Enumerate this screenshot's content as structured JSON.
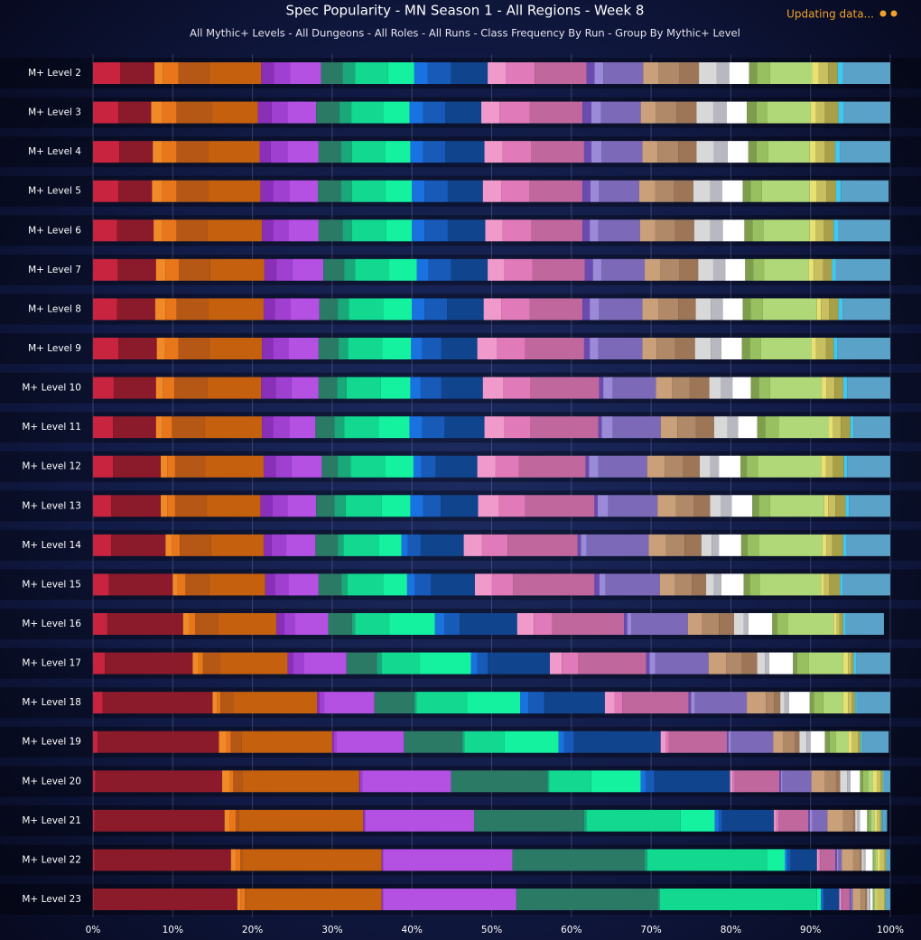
{
  "status": "Updating data...",
  "chart_data": {
    "type": "bar",
    "orientation": "horizontal",
    "stacked": true,
    "title": "Spec Popularity - MN Season 1 - All Regions - Week 8",
    "subtitle": "All Mythic+ Levels - All Dungeons - All Roles - All Runs - Class Frequency By Run - Group By Mythic+ Level",
    "categories": [
      "M+ Level 2",
      "M+ Level 3",
      "M+ Level 4",
      "M+ Level 5",
      "M+ Level 6",
      "M+ Level 7",
      "M+ Level 8",
      "M+ Level 9",
      "M+ Level 10",
      "M+ Level 11",
      "M+ Level 12",
      "M+ Level 13",
      "M+ Level 14",
      "M+ Level 15",
      "M+ Level 16",
      "M+ Level 17",
      "M+ Level 18",
      "M+ Level 19",
      "M+ Level 20",
      "M+ Level 21",
      "M+ Level 22",
      "M+ Level 23"
    ],
    "xlim": [
      0,
      100
    ],
    "xticks": [
      {
        "value": 0,
        "label": "0%"
      },
      {
        "value": 10,
        "label": "10%"
      },
      {
        "value": 20,
        "label": "20%"
      },
      {
        "value": 30,
        "label": "30%"
      },
      {
        "value": 40,
        "label": "40%"
      },
      {
        "value": 50,
        "label": "50%"
      },
      {
        "value": 60,
        "label": "60%"
      },
      {
        "value": 70,
        "label": "70%"
      },
      {
        "value": 80,
        "label": "80%"
      },
      {
        "value": 90,
        "label": "90%"
      },
      {
        "value": 100,
        "label": "100%"
      }
    ],
    "grid": true,
    "series": [
      {
        "color": "#c8243f",
        "values": [
          3.4,
          3.2,
          3.3,
          3.2,
          3.0,
          3.1,
          3.0,
          3.2,
          2.6,
          2.5,
          2.5,
          2.3,
          2.3,
          2.0,
          1.8,
          1.5,
          1.2,
          0.6,
          0.3,
          0.2,
          0.2,
          0.1
        ]
      },
      {
        "color": "#8b1a2a",
        "values": [
          4.3,
          4.1,
          4.2,
          4.2,
          4.6,
          4.8,
          4.8,
          4.8,
          5.3,
          5.4,
          6.0,
          6.2,
          6.8,
          8.0,
          9.5,
          11.0,
          13.8,
          15.2,
          15.9,
          16.3,
          17.1,
          18.0
        ]
      },
      {
        "color": "#f08a28",
        "values": [
          1.1,
          1.4,
          1.2,
          1.3,
          1.1,
          1.2,
          1.3,
          1.0,
          0.9,
          0.8,
          0.8,
          0.8,
          0.8,
          0.6,
          0.8,
          0.7,
          0.6,
          0.9,
          0.9,
          0.6,
          0.6,
          0.4
        ]
      },
      {
        "color": "#e8761a",
        "values": [
          1.9,
          1.8,
          1.8,
          1.8,
          1.8,
          1.7,
          1.4,
          1.7,
          1.4,
          1.2,
          1.0,
          1.0,
          1.0,
          1.0,
          0.7,
          0.6,
          0.4,
          0.6,
          0.5,
          0.8,
          0.6,
          0.6
        ]
      },
      {
        "color": "#b55816",
        "values": [
          3.9,
          4.4,
          3.9,
          4.0,
          3.8,
          3.9,
          3.9,
          3.9,
          4.1,
          4.1,
          3.8,
          3.9,
          3.9,
          3.0,
          2.9,
          2.1,
          1.6,
          1.3,
          1.1,
          0.4,
          0.2,
          0.1
        ]
      },
      {
        "color": "#c4600e",
        "values": [
          6.5,
          5.8,
          6.5,
          6.5,
          6.9,
          6.8,
          7.0,
          6.6,
          6.8,
          7.2,
          7.3,
          6.8,
          6.6,
          7.0,
          7.3,
          8.5,
          10.5,
          11.4,
          14.7,
          15.6,
          17.5,
          17.0
        ]
      },
      {
        "color": "#8a2fb8",
        "values": [
          1.6,
          1.7,
          1.4,
          1.6,
          1.4,
          1.5,
          1.4,
          1.4,
          1.8,
          1.4,
          1.5,
          1.5,
          1.0,
          1.2,
          1.0,
          0.7,
          0.3,
          0.2,
          0.1,
          0.1,
          0.1,
          0.1
        ]
      },
      {
        "color": "#a040d0",
        "values": [
          2.0,
          2.0,
          2.1,
          2.0,
          1.9,
          2.0,
          2.0,
          1.9,
          2.0,
          2.0,
          2.0,
          1.9,
          1.8,
          1.7,
          1.3,
          1.4,
          0.6,
          0.3,
          0.3,
          0.2,
          0.1,
          0.1
        ]
      },
      {
        "color": "#b450e2",
        "values": [
          3.9,
          3.6,
          3.9,
          3.6,
          3.8,
          3.9,
          3.6,
          3.8,
          3.4,
          3.3,
          3.8,
          3.6,
          3.7,
          3.8,
          4.2,
          5.3,
          6.3,
          8.5,
          11.1,
          13.6,
          16.2,
          16.7
        ]
      },
      {
        "color": "#2a7a66",
        "values": [
          2.7,
          2.9,
          2.8,
          2.9,
          3.0,
          2.6,
          2.3,
          2.5,
          2.3,
          2.4,
          2.0,
          2.3,
          2.8,
          2.9,
          3.0,
          3.8,
          5.0,
          7.3,
          12.1,
          13.8,
          16.6,
          17.8
        ]
      },
      {
        "color": "#1aa87a",
        "values": [
          1.6,
          1.5,
          1.4,
          1.4,
          1.2,
          1.4,
          1.4,
          1.2,
          1.2,
          1.2,
          1.6,
          1.4,
          0.7,
          0.7,
          0.4,
          0.6,
          0.3,
          0.3,
          0.2,
          0.3,
          0.3,
          0.2
        ]
      },
      {
        "color": "#12d890",
        "values": [
          4.1,
          4.0,
          4.1,
          4.2,
          4.3,
          4.2,
          4.3,
          4.3,
          4.3,
          4.3,
          4.3,
          4.5,
          4.5,
          4.5,
          4.3,
          4.8,
          6.3,
          5.0,
          5.3,
          11.8,
          15.1,
          19.7
        ]
      },
      {
        "color": "#14f2a0",
        "values": [
          3.3,
          3.3,
          3.2,
          3.3,
          3.2,
          3.5,
          3.6,
          3.6,
          3.7,
          3.9,
          3.6,
          3.6,
          2.8,
          3.0,
          5.7,
          6.4,
          6.7,
          6.8,
          6.2,
          4.3,
          2.2,
          0.5
        ]
      },
      {
        "color": "#1a72e0",
        "values": [
          1.7,
          1.7,
          1.6,
          1.6,
          1.6,
          1.5,
          1.6,
          1.4,
          1.3,
          1.6,
          1.0,
          1.6,
          0.8,
          1.0,
          1.2,
          0.8,
          1.0,
          0.7,
          0.6,
          0.5,
          0.3,
          0.2
        ]
      },
      {
        "color": "#175ab8",
        "values": [
          2.9,
          2.8,
          2.8,
          2.9,
          2.9,
          2.8,
          2.8,
          2.4,
          2.6,
          2.8,
          1.8,
          2.2,
          1.6,
          2.0,
          1.9,
          1.3,
          2.0,
          1.2,
          1.1,
          0.4,
          0.4,
          0.2
        ]
      },
      {
        "color": "#10448c",
        "values": [
          4.6,
          4.5,
          4.9,
          4.4,
          4.7,
          4.6,
          4.6,
          4.5,
          5.2,
          5.0,
          5.2,
          4.7,
          5.4,
          5.5,
          7.2,
          7.8,
          7.6,
          10.9,
          9.5,
          6.5,
          3.3,
          1.9
        ]
      },
      {
        "color": "#f09acb",
        "values": [
          2.3,
          2.3,
          2.3,
          2.3,
          2.2,
          2.1,
          2.2,
          2.5,
          2.6,
          2.5,
          2.3,
          2.6,
          2.3,
          2.1,
          2.1,
          1.5,
          1.2,
          0.6,
          0.3,
          0.3,
          0.2,
          0.2
        ]
      },
      {
        "color": "#e07ab8",
        "values": [
          3.6,
          3.8,
          3.6,
          3.5,
          3.6,
          3.5,
          3.6,
          3.5,
          3.4,
          3.3,
          2.9,
          3.3,
          3.2,
          2.7,
          2.3,
          2.1,
          1.0,
          0.4,
          0.3,
          0.3,
          0.2,
          0.1
        ]
      },
      {
        "color": "#c0689e",
        "values": [
          6.5,
          6.6,
          6.6,
          6.7,
          6.4,
          6.6,
          6.6,
          7.4,
          8.6,
          8.5,
          8.4,
          8.7,
          8.8,
          10.2,
          9.0,
          8.5,
          8.3,
          7.3,
          5.6,
          3.7,
          1.9,
          1.0
        ]
      },
      {
        "color": "#6a4cb0",
        "values": [
          1.0,
          1.1,
          0.9,
          1.0,
          0.9,
          1.0,
          0.9,
          0.7,
          0.5,
          0.4,
          0.4,
          0.4,
          0.4,
          0.6,
          0.4,
          0.4,
          0.3,
          0.2,
          0.2,
          0.2,
          0.2,
          0.1
        ]
      },
      {
        "color": "#9a8ad8",
        "values": [
          1.1,
          1.2,
          1.3,
          1.1,
          1.1,
          1.1,
          1.2,
          1.1,
          1.2,
          1.4,
          1.2,
          1.3,
          0.7,
          0.8,
          0.5,
          0.7,
          0.5,
          0.3,
          0.2,
          0.3,
          0.2,
          0.1
        ]
      },
      {
        "color": "#7c6ab8",
        "values": [
          5.0,
          5.0,
          5.1,
          5.0,
          5.2,
          5.4,
          5.4,
          5.5,
          5.4,
          6.0,
          6.1,
          6.2,
          7.8,
          6.8,
          7.1,
          6.7,
          6.5,
          5.3,
          3.6,
          1.9,
          0.4,
          0.2
        ]
      },
      {
        "color": "#c9a07a",
        "values": [
          1.9,
          1.9,
          1.9,
          2.0,
          1.9,
          2.0,
          2.0,
          1.8,
          2.0,
          2.1,
          2.2,
          2.3,
          2.2,
          1.9,
          1.8,
          2.2,
          2.4,
          1.3,
          1.7,
          2.0,
          1.4,
          1.0
        ]
      },
      {
        "color": "#b08a68",
        "values": [
          2.6,
          2.6,
          2.6,
          2.4,
          2.5,
          2.3,
          2.5,
          2.3,
          2.2,
          2.3,
          2.3,
          2.3,
          2.3,
          2.1,
          2.1,
          2.0,
          1.0,
          1.4,
          1.4,
          1.2,
          0.9,
          0.6
        ]
      },
      {
        "color": "#9c7656",
        "values": [
          2.5,
          2.5,
          2.3,
          2.4,
          2.4,
          2.4,
          2.2,
          2.5,
          2.5,
          2.3,
          2.1,
          2.0,
          2.1,
          1.8,
          1.9,
          1.9,
          0.8,
          0.6,
          0.5,
          0.3,
          0.2,
          0.2
        ]
      },
      {
        "color": "#d8d8d8",
        "values": [
          2.2,
          2.1,
          2.2,
          2.1,
          2.0,
          1.9,
          1.9,
          2.0,
          1.5,
          1.7,
          1.3,
          1.4,
          1.3,
          1.0,
          1.2,
          1.0,
          0.5,
          0.9,
          0.9,
          0.3,
          0.3,
          0.2
        ]
      },
      {
        "color": "#b8b8c0",
        "values": [
          1.6,
          1.7,
          1.7,
          1.5,
          1.6,
          1.5,
          1.5,
          1.3,
          1.4,
          1.3,
          1.1,
          1.3,
          0.9,
          0.9,
          0.6,
          0.5,
          0.6,
          0.5,
          0.4,
          0.3,
          0.2,
          0.2
        ]
      },
      {
        "color": "#ffffff",
        "values": [
          2.5,
          2.5,
          2.6,
          2.6,
          2.7,
          2.5,
          2.5,
          2.6,
          2.3,
          2.4,
          2.7,
          2.6,
          2.8,
          2.8,
          3.0,
          3.0,
          2.6,
          1.8,
          1.2,
          0.9,
          0.9,
          0.3
        ]
      },
      {
        "color": "#7e9e4e",
        "values": [
          1.0,
          1.2,
          1.0,
          1.0,
          1.0,
          1.0,
          1.0,
          1.0,
          1.0,
          1.0,
          0.8,
          0.8,
          0.8,
          0.8,
          0.6,
          0.5,
          0.5,
          0.6,
          0.4,
          0.2,
          0.1,
          0.1
        ]
      },
      {
        "color": "#98c060",
        "values": [
          1.6,
          1.4,
          1.5,
          1.4,
          1.4,
          1.4,
          1.5,
          1.4,
          1.4,
          1.7,
          1.4,
          1.4,
          1.4,
          1.2,
          1.4,
          1.5,
          1.2,
          0.8,
          0.6,
          0.3,
          0.2,
          0.1
        ]
      },
      {
        "color": "#b0d878",
        "values": [
          5.3,
          5.4,
          5.2,
          6.0,
          5.8,
          5.6,
          6.8,
          6.3,
          6.5,
          6.3,
          7.9,
          6.8,
          8.0,
          7.7,
          5.7,
          4.3,
          2.5,
          1.5,
          0.6,
          0.4,
          0.3,
          0.2
        ]
      },
      {
        "color": "#e8e070",
        "values": [
          0.8,
          0.7,
          0.7,
          0.9,
          0.7,
          0.6,
          0.5,
          0.6,
          0.6,
          0.5,
          0.6,
          0.5,
          0.5,
          0.4,
          0.4,
          0.6,
          0.6,
          0.5,
          0.5,
          0.3,
          0.3,
          0.2
        ]
      },
      {
        "color": "#c8c060",
        "values": [
          1.2,
          1.1,
          1.2,
          1.2,
          1.1,
          1.2,
          1.0,
          1.2,
          1.0,
          1.0,
          0.9,
          0.9,
          0.7,
          0.6,
          0.3,
          0.4,
          0.5,
          0.8,
          0.5,
          0.4,
          0.6,
          0.9
        ]
      },
      {
        "color": "#a8a048",
        "values": [
          1.2,
          1.7,
          1.3,
          1.2,
          1.2,
          1.1,
          1.2,
          1.0,
          1.1,
          1.2,
          1.4,
          1.3,
          1.4,
          1.4,
          0.5,
          0.3,
          0.4,
          0.3,
          0.3,
          0.2,
          0.2,
          0.1
        ]
      },
      {
        "color": "#40c8f0",
        "values": [
          0.7,
          0.7,
          0.6,
          0.6,
          0.6,
          0.5,
          0.5,
          0.5,
          0.5,
          0.4,
          0.4,
          0.4,
          0.4,
          0.3,
          0.3,
          0.3,
          0.2,
          0.2,
          0.2,
          0.1,
          0.1,
          0.1
        ]
      },
      {
        "color": "#5aa2c8",
        "values": [
          5.9,
          5.8,
          6.3,
          6.0,
          6.5,
          6.8,
          6.0,
          6.6,
          5.4,
          4.6,
          5.4,
          5.2,
          5.5,
          6.0,
          4.8,
          4.3,
          4.2,
          3.3,
          0.7,
          0.6,
          0.4,
          0.5
        ]
      }
    ]
  }
}
